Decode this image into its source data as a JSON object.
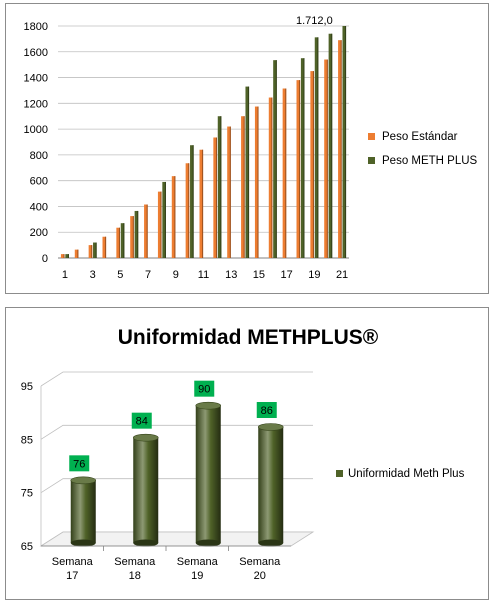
{
  "chart_data": [
    {
      "type": "bar",
      "x": [
        1,
        2,
        3,
        4,
        5,
        6,
        7,
        8,
        9,
        10,
        11,
        12,
        13,
        14,
        15,
        16,
        17,
        18,
        19,
        20,
        21
      ],
      "x_tick_labels": [
        "1",
        "3",
        "5",
        "7",
        "9",
        "11",
        "13",
        "15",
        "17",
        "19",
        "21"
      ],
      "ylim": [
        0,
        1800
      ],
      "y_ticks": [
        "0",
        "200",
        "400",
        "600",
        "800",
        "1000",
        "1200",
        "1400",
        "1600",
        "1800"
      ],
      "grid": true,
      "legend_position": "right",
      "series": [
        {
          "name": "Peso Estándar",
          "color": "#ed7d31",
          "values": [
            30,
            65,
            100,
            165,
            235,
            325,
            415,
            515,
            635,
            735,
            840,
            935,
            1020,
            1100,
            1175,
            1245,
            1315,
            1380,
            1450,
            1540,
            1690
          ]
        },
        {
          "name": "Peso METH PLUS",
          "color": "#4f6228",
          "values": [
            30,
            null,
            120,
            null,
            270,
            365,
            null,
            590,
            null,
            875,
            null,
            1100,
            null,
            1330,
            null,
            1535,
            null,
            1550,
            1712,
            1740,
            1800
          ]
        }
      ],
      "annotations": [
        {
          "text": "1.712,0",
          "x": 19,
          "series": "Peso METH PLUS"
        }
      ]
    },
    {
      "type": "bar",
      "title": "Uniformidad METHPLUS®",
      "categories": [
        "Semana 17",
        "Semana 18",
        "Semana 19",
        "Semana 20"
      ],
      "category_lines": [
        [
          "Semana",
          "17"
        ],
        [
          "Semana",
          "18"
        ],
        [
          "Semana",
          "19"
        ],
        [
          "Semana",
          "20"
        ]
      ],
      "ylim": [
        65,
        95
      ],
      "y_ticks": [
        "65",
        "75",
        "85",
        "95"
      ],
      "legend_position": "right",
      "series": [
        {
          "name": "Uniformidad Meth Plus",
          "color": "#4f6228",
          "values": [
            76,
            84,
            90,
            86
          ],
          "data_labels": [
            "76",
            "84",
            "90",
            "86"
          ],
          "label_color": "#00b050"
        }
      ]
    }
  ]
}
